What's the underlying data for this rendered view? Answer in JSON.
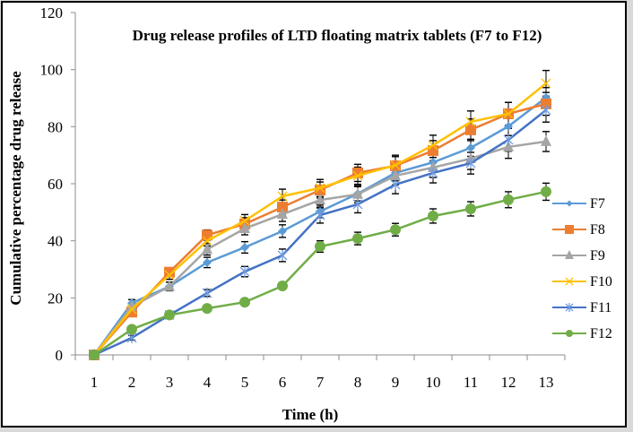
{
  "chart_data": {
    "type": "line",
    "title": "Drug release profiles of LTD floating matrix tablets (F7 to F12)",
    "xlabel": "Time (h)",
    "ylabel": "Cumulative percentage drug release",
    "categories": [
      "1",
      "2",
      "3",
      "4",
      "5",
      "6",
      "7",
      "8",
      "9",
      "10",
      "11",
      "12",
      "13"
    ],
    "ylim": [
      0,
      120
    ],
    "yticks": [
      "0",
      "20",
      "40",
      "60",
      "80",
      "100",
      "120"
    ],
    "grid": false,
    "legend_position": "right",
    "series": [
      {
        "name": "F7",
        "color": "#5B9BD5",
        "marker": "diamond",
        "values": [
          0,
          18.2,
          24.0,
          32.4,
          37.7,
          43.4,
          50.3,
          56.5,
          63.8,
          67.5,
          72.6,
          80.1,
          90.2
        ],
        "errors": [
          0,
          1.2,
          1.5,
          1.8,
          2.0,
          2.2,
          2.2,
          2.5,
          2.8,
          3.0,
          3.0,
          3.2,
          3.5
        ]
      },
      {
        "name": "F8",
        "color": "#ED7D31",
        "marker": "square",
        "values": [
          0,
          15.0,
          29.0,
          42.0,
          45.9,
          51.8,
          57.8,
          63.8,
          66.3,
          71.6,
          78.9,
          84.5,
          88.0
        ],
        "errors": [
          0,
          1.0,
          1.5,
          1.8,
          2.2,
          2.5,
          2.8,
          3.0,
          3.2,
          3.5,
          3.8,
          4.0,
          4.0
        ]
      },
      {
        "name": "F9",
        "color": "#A5A5A5",
        "marker": "triangle",
        "values": [
          0,
          17.0,
          24.0,
          37.0,
          44.3,
          49.3,
          54.3,
          56.3,
          62.8,
          65.7,
          68.8,
          72.9,
          74.8
        ],
        "errors": [
          0,
          1.2,
          1.5,
          2.0,
          2.2,
          2.5,
          2.8,
          3.0,
          3.2,
          3.5,
          3.8,
          4.0,
          3.5
        ]
      },
      {
        "name": "F10",
        "color": "#FFC000",
        "marker": "x",
        "values": [
          0,
          16.0,
          28.0,
          40.0,
          47.0,
          55.6,
          58.5,
          62.8,
          66.5,
          73.5,
          81.7,
          84.5,
          95.2
        ],
        "errors": [
          0,
          1.2,
          1.5,
          1.8,
          2.2,
          2.5,
          3.0,
          3.0,
          3.5,
          3.5,
          3.8,
          4.0,
          4.5
        ]
      },
      {
        "name": "F11",
        "color": "#4472C4",
        "marker": "star",
        "values": [
          0,
          6.0,
          14.0,
          21.7,
          29.2,
          34.9,
          49.0,
          52.8,
          59.7,
          63.8,
          67.2,
          75.4,
          85.8
        ],
        "errors": [
          0,
          0.8,
          1.0,
          1.2,
          1.8,
          2.2,
          2.8,
          3.0,
          3.2,
          3.5,
          3.8,
          4.0,
          4.2
        ]
      },
      {
        "name": "F12",
        "color": "#70AD47",
        "marker": "circle",
        "values": [
          0,
          9.0,
          14.0,
          16.3,
          18.5,
          24.2,
          38.0,
          40.8,
          43.9,
          48.7,
          51.2,
          54.4,
          57.2
        ],
        "errors": [
          0,
          0.8,
          1.0,
          1.0,
          1.2,
          1.2,
          2.0,
          2.2,
          2.2,
          2.5,
          2.5,
          2.8,
          3.0
        ]
      }
    ]
  }
}
